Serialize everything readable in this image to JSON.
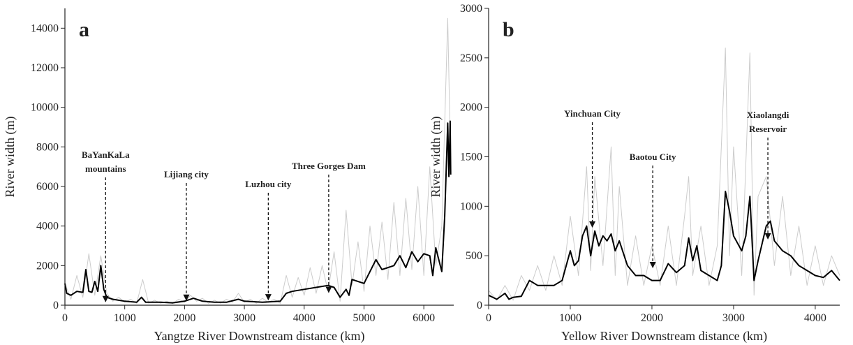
{
  "chart_data": [
    {
      "type": "line",
      "title": "a",
      "xlabel": "Yangtze River Downstream distance (km)",
      "ylabel": "River width (m)",
      "xlim": [
        0,
        6500
      ],
      "ylim": [
        0,
        15000
      ],
      "xticks": [
        0,
        1000,
        2000,
        3000,
        4000,
        5000,
        6000
      ],
      "yticks": [
        0,
        2000,
        4000,
        6000,
        8000,
        10000,
        12000,
        14000
      ],
      "series": [
        {
          "color": "#cccccc",
          "x": [
            0,
            100,
            200,
            300,
            400,
            500,
            600,
            700,
            800,
            900,
            1000,
            1100,
            1200,
            1300,
            1400,
            1500,
            1600,
            1700,
            1800,
            1900,
            2000,
            2100,
            2200,
            2300,
            2400,
            2500,
            2600,
            2700,
            2800,
            2900,
            3000,
            3100,
            3200,
            3300,
            3400,
            3500,
            3600,
            3700,
            3800,
            3900,
            4000,
            4100,
            4200,
            4300,
            4400,
            4500,
            4600,
            4700,
            4800,
            4900,
            5000,
            5100,
            5200,
            5300,
            5400,
            5500,
            5600,
            5700,
            5800,
            5900,
            6000,
            6100,
            6200,
            6300,
            6400,
            6450
          ],
          "values": [
            1100,
            300,
            1500,
            400,
            2600,
            500,
            2500,
            600,
            200,
            400,
            150,
            300,
            100,
            1300,
            100,
            250,
            100,
            200,
            80,
            300,
            150,
            500,
            200,
            350,
            100,
            250,
            100,
            300,
            150,
            600,
            150,
            300,
            100,
            350,
            150,
            300,
            100,
            1500,
            400,
            1400,
            500,
            1900,
            600,
            2000,
            700,
            2700,
            200,
            4800,
            1000,
            3200,
            700,
            4000,
            1500,
            4200,
            1300,
            5200,
            1500,
            5400,
            1800,
            6000,
            1500,
            7000,
            2000,
            4000,
            14500,
            7000
          ]
        },
        {
          "color": "#000000",
          "x": [
            0,
            30,
            100,
            200,
            300,
            350,
            400,
            450,
            500,
            550,
            600,
            650,
            700,
            800,
            1000,
            1200,
            1280,
            1350,
            1600,
            1800,
            2000,
            2150,
            2300,
            2500,
            2700,
            2900,
            3000,
            3300,
            3600,
            3700,
            3800,
            4000,
            4200,
            4400,
            4500,
            4600,
            4700,
            4750,
            4800,
            5000,
            5200,
            5300,
            5500,
            5600,
            5700,
            5800,
            5900,
            6000,
            6100,
            6150,
            6200,
            6300,
            6350,
            6400,
            6420,
            6440,
            6450
          ],
          "values": [
            1100,
            600,
            500,
            700,
            650,
            1800,
            700,
            650,
            1200,
            700,
            2000,
            800,
            400,
            300,
            200,
            150,
            400,
            150,
            150,
            120,
            200,
            350,
            200,
            150,
            150,
            300,
            200,
            150,
            200,
            600,
            700,
            800,
            900,
            1000,
            900,
            400,
            800,
            500,
            1300,
            1100,
            2300,
            1800,
            2000,
            2500,
            1900,
            2700,
            2200,
            2600,
            2500,
            1500,
            2900,
            1700,
            4500,
            9200,
            6500,
            9300,
            6600
          ]
        }
      ],
      "annotations": [
        {
          "lines": [
            "BaYanKaLa",
            "mountains"
          ],
          "x": 680,
          "y": 180
        },
        {
          "lines": [
            "Lijiang city"
          ],
          "x": 2030,
          "y": 250
        },
        {
          "lines": [
            "Luzhou city"
          ],
          "x": 3400,
          "y": 270
        },
        {
          "lines": [
            "Three Gorges Dam"
          ],
          "x": 4410,
          "y": 650
        }
      ]
    },
    {
      "type": "line",
      "title": "b",
      "xlabel": "Yellow River Downstream distance (km)",
      "ylabel": "River width (m)",
      "xlim": [
        0,
        4300
      ],
      "ylim": [
        0,
        3000
      ],
      "xticks": [
        0,
        1000,
        2000,
        3000,
        4000
      ],
      "yticks": [
        0,
        500,
        1000,
        1500,
        2000,
        2500,
        3000
      ],
      "series": [
        {
          "color": "#cccccc",
          "x": [
            0,
            100,
            200,
            300,
            400,
            500,
            600,
            700,
            800,
            900,
            1000,
            1100,
            1200,
            1250,
            1300,
            1400,
            1500,
            1550,
            1600,
            1700,
            1800,
            1900,
            2000,
            2100,
            2200,
            2300,
            2400,
            2450,
            2500,
            2600,
            2700,
            2800,
            2900,
            2950,
            3000,
            3100,
            3200,
            3250,
            3300,
            3400,
            3500,
            3600,
            3700,
            3800,
            3900,
            4000,
            4100,
            4200,
            4300
          ],
          "values": [
            150,
            50,
            200,
            50,
            300,
            150,
            400,
            150,
            500,
            200,
            900,
            300,
            1400,
            350,
            1300,
            400,
            1600,
            300,
            1200,
            200,
            700,
            200,
            600,
            200,
            800,
            200,
            900,
            1300,
            300,
            800,
            200,
            600,
            2600,
            500,
            1600,
            300,
            2550,
            100,
            1100,
            1300,
            400,
            1100,
            300,
            800,
            200,
            600,
            200,
            500,
            300
          ]
        },
        {
          "color": "#000000",
          "x": [
            0,
            100,
            200,
            250,
            300,
            400,
            500,
            600,
            700,
            800,
            900,
            1000,
            1050,
            1100,
            1150,
            1200,
            1250,
            1300,
            1350,
            1400,
            1450,
            1500,
            1550,
            1600,
            1700,
            1800,
            1900,
            2000,
            2100,
            2200,
            2300,
            2400,
            2450,
            2500,
            2550,
            2600,
            2700,
            2800,
            2850,
            2900,
            2950,
            3000,
            3100,
            3150,
            3200,
            3250,
            3300,
            3400,
            3450,
            3500,
            3600,
            3700,
            3800,
            3900,
            4000,
            4100,
            4200,
            4300
          ],
          "values": [
            100,
            60,
            120,
            60,
            80,
            90,
            250,
            200,
            200,
            200,
            250,
            550,
            400,
            450,
            700,
            800,
            500,
            750,
            600,
            700,
            650,
            720,
            550,
            650,
            400,
            300,
            300,
            250,
            250,
            420,
            330,
            400,
            680,
            450,
            600,
            350,
            300,
            250,
            400,
            1150,
            950,
            700,
            550,
            700,
            1100,
            250,
            450,
            800,
            850,
            650,
            550,
            500,
            400,
            350,
            300,
            280,
            350,
            250
          ]
        }
      ],
      "annotations": [
        {
          "lines": [
            "Yinchuan City"
          ],
          "x": 1270,
          "y": 790
        },
        {
          "lines": [
            "Baotou City"
          ],
          "x": 2010,
          "y": 380
        },
        {
          "lines": [
            "Xiaolangdi",
            "Reservoir"
          ],
          "x": 3420,
          "y": 670
        }
      ]
    }
  ]
}
